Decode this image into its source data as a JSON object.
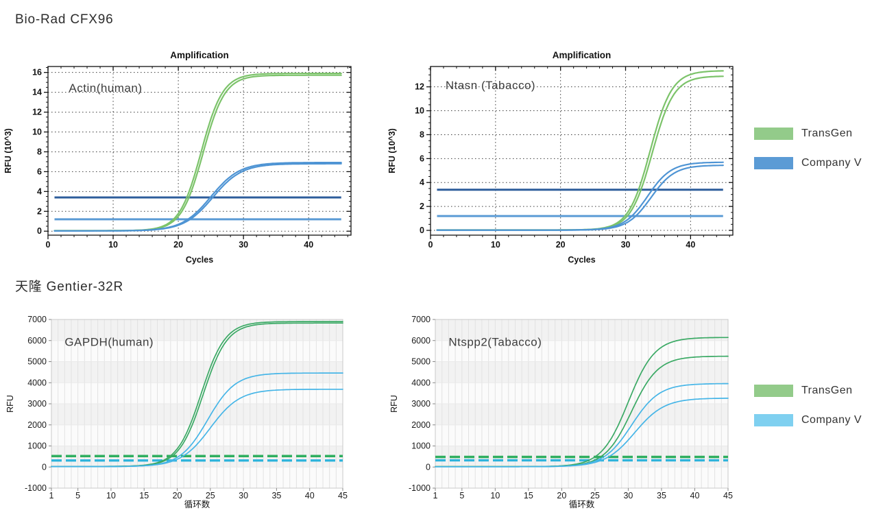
{
  "page": {
    "section1_title": "Bio-Rad CFX96",
    "section2_title": "天隆 Gentier-32R"
  },
  "legends": [
    {
      "position": "top",
      "items": [
        {
          "label": "TransGen",
          "color": "#93cb8a"
        },
        {
          "label": "Company V",
          "color": "#5b9bd5"
        }
      ]
    },
    {
      "position": "bottom",
      "items": [
        {
          "label": "TransGen",
          "color": "#93cb8a"
        },
        {
          "label": "Company V",
          "color": "#7fd0f0"
        }
      ]
    }
  ],
  "chart_data": [
    {
      "id": "biorad-actin",
      "type": "line",
      "style": "biorad",
      "instrument": "Bio-Rad CFX96",
      "title": "Amplification",
      "annotation": "Actin(human)",
      "annotation_xy": [
        3.2,
        14.05
      ],
      "xlabel": "Cycles",
      "ylabel": "RFU (10^3)",
      "xlim": [
        0,
        46.5
      ],
      "ylim": [
        -0.4,
        16.6
      ],
      "xticks": [
        0,
        10,
        20,
        30,
        40
      ],
      "yticks": [
        0,
        2,
        4,
        6,
        8,
        10,
        12,
        14,
        16
      ],
      "x_minor_step": 2,
      "y_minor_step": 0.5,
      "grid": "dotted-black",
      "thresholds": [
        {
          "name": "threshold-company-v",
          "y": 3.4,
          "color": "#2d5d9b",
          "dash": false
        },
        {
          "name": "threshold-transgen",
          "y": 1.2,
          "color": "#5b9bd5",
          "dash": false
        }
      ],
      "series": [
        {
          "name": "TransGen rep1",
          "color": "#7cc36a",
          "baseline": 0.05,
          "plateau": 15.9,
          "midpoint_cycle": 23.5,
          "slope": 0.6,
          "x_start": 1,
          "x_end": 45
        },
        {
          "name": "TransGen rep2",
          "color": "#7cc36a",
          "baseline": 0.05,
          "plateau": 15.72,
          "midpoint_cycle": 23.8,
          "slope": 0.6,
          "x_start": 1,
          "x_end": 45
        },
        {
          "name": "Company V rep1",
          "color": "#4e94d4",
          "baseline": 0.03,
          "plateau": 6.92,
          "midpoint_cycle": 25.0,
          "slope": 0.45,
          "x_start": 1,
          "x_end": 45
        },
        {
          "name": "Company V rep2",
          "color": "#4e94d4",
          "baseline": 0.03,
          "plateau": 6.8,
          "midpoint_cycle": 25.3,
          "slope": 0.45,
          "x_start": 1,
          "x_end": 45
        }
      ]
    },
    {
      "id": "biorad-ntasn",
      "type": "line",
      "style": "biorad",
      "instrument": "Bio-Rad CFX96",
      "title": "Amplification",
      "annotation": "Ntasn (Tabacco)",
      "annotation_xy": [
        2.3,
        11.8
      ],
      "xlabel": "Cycles",
      "ylabel": "RFU (10^3)",
      "xlim": [
        0,
        46.5
      ],
      "ylim": [
        -0.4,
        13.7
      ],
      "xticks": [
        0,
        10,
        20,
        30,
        40
      ],
      "yticks": [
        0,
        2,
        4,
        6,
        8,
        10,
        12
      ],
      "x_minor_step": 2,
      "y_minor_step": 0.5,
      "grid": "dotted-black",
      "thresholds": [
        {
          "name": "threshold-company-v",
          "y": 3.4,
          "color": "#2d5d9b",
          "dash": false
        },
        {
          "name": "threshold-transgen",
          "y": 1.2,
          "color": "#5b9bd5",
          "dash": false
        }
      ],
      "series": [
        {
          "name": "TransGen rep1",
          "color": "#7cc36a",
          "baseline": 0.03,
          "plateau": 13.35,
          "midpoint_cycle": 33.8,
          "slope": 0.6,
          "x_start": 1,
          "x_end": 45
        },
        {
          "name": "TransGen rep2",
          "color": "#7cc36a",
          "baseline": 0.03,
          "plateau": 12.9,
          "midpoint_cycle": 34.1,
          "slope": 0.6,
          "x_start": 1,
          "x_end": 45
        },
        {
          "name": "Company V rep1",
          "color": "#4e94d4",
          "baseline": 0.02,
          "plateau": 5.7,
          "midpoint_cycle": 33.4,
          "slope": 0.55,
          "x_start": 1,
          "x_end": 45
        },
        {
          "name": "Company V rep2",
          "color": "#4e94d4",
          "baseline": 0.02,
          "plateau": 5.45,
          "midpoint_cycle": 33.9,
          "slope": 0.55,
          "x_start": 1,
          "x_end": 45
        }
      ]
    },
    {
      "id": "gentier-gapdh",
      "type": "line",
      "style": "gentier",
      "instrument": "天隆 Gentier-32R",
      "title": "",
      "annotation": "GAPDH(human)",
      "annotation_xy": [
        3.0,
        5750
      ],
      "xlabel": "循环数",
      "ylabel": "RFU",
      "xlim": [
        1,
        45
      ],
      "ylim": [
        -1000,
        7000
      ],
      "xticks": [
        1,
        5,
        10,
        15,
        20,
        25,
        30,
        35,
        40,
        45
      ],
      "yticks": [
        -1000,
        0,
        1000,
        2000,
        3000,
        4000,
        5000,
        6000,
        7000
      ],
      "x_minor_step": 1,
      "y_minor_step": 1000,
      "grid": "banded-gray",
      "thresholds": [
        {
          "name": "threshold-transgen",
          "y": 520,
          "color": "#2fae5f",
          "dash": true
        },
        {
          "name": "threshold-company-v",
          "y": 310,
          "color": "#2fb4dc",
          "dash": true
        }
      ],
      "series": [
        {
          "name": "TransGen rep1",
          "color": "#3aa964",
          "baseline": 30,
          "plateau": 6900,
          "midpoint_cycle": 23.6,
          "slope": 0.55,
          "x_start": 1,
          "x_end": 45
        },
        {
          "name": "TransGen rep2",
          "color": "#3aa964",
          "baseline": 30,
          "plateau": 6830,
          "midpoint_cycle": 23.9,
          "slope": 0.55,
          "x_start": 1,
          "x_end": 45
        },
        {
          "name": "Company V rep1",
          "color": "#45b5e7",
          "baseline": 20,
          "plateau": 4460,
          "midpoint_cycle": 24.6,
          "slope": 0.48,
          "x_start": 1,
          "x_end": 45
        },
        {
          "name": "Company V rep2",
          "color": "#45b5e7",
          "baseline": 20,
          "plateau": 3690,
          "midpoint_cycle": 25.0,
          "slope": 0.45,
          "x_start": 1,
          "x_end": 45
        }
      ]
    },
    {
      "id": "gentier-ntspp2",
      "type": "line",
      "style": "gentier",
      "instrument": "天隆 Gentier-32R",
      "title": "",
      "annotation": "Ntspp2(Tabacco)",
      "annotation_xy": [
        3.0,
        5750
      ],
      "xlabel": "循环数",
      "ylabel": "RFU",
      "xlim": [
        1,
        45
      ],
      "ylim": [
        -1000,
        7000
      ],
      "xticks": [
        1,
        5,
        10,
        15,
        20,
        25,
        30,
        35,
        40,
        45
      ],
      "yticks": [
        -1000,
        0,
        1000,
        2000,
        3000,
        4000,
        5000,
        6000,
        7000
      ],
      "x_minor_step": 1,
      "y_minor_step": 1000,
      "grid": "banded-gray",
      "thresholds": [
        {
          "name": "threshold-transgen",
          "y": 480,
          "color": "#2fae5f",
          "dash": true
        },
        {
          "name": "threshold-company-v",
          "y": 320,
          "color": "#2fb4dc",
          "dash": true
        }
      ],
      "series": [
        {
          "name": "TransGen rep1",
          "color": "#3aa964",
          "baseline": 20,
          "plateau": 6150,
          "midpoint_cycle": 30.0,
          "slope": 0.5,
          "x_start": 1,
          "x_end": 45
        },
        {
          "name": "TransGen rep2",
          "color": "#3aa964",
          "baseline": 20,
          "plateau": 5260,
          "midpoint_cycle": 30.5,
          "slope": 0.5,
          "x_start": 1,
          "x_end": 45
        },
        {
          "name": "Company V rep1",
          "color": "#45b5e7",
          "baseline": 15,
          "plateau": 3960,
          "midpoint_cycle": 30.5,
          "slope": 0.48,
          "x_start": 1,
          "x_end": 45
        },
        {
          "name": "Company V rep2",
          "color": "#45b5e7",
          "baseline": 15,
          "plateau": 3270,
          "midpoint_cycle": 31.0,
          "slope": 0.45,
          "x_start": 1,
          "x_end": 45
        }
      ]
    }
  ]
}
